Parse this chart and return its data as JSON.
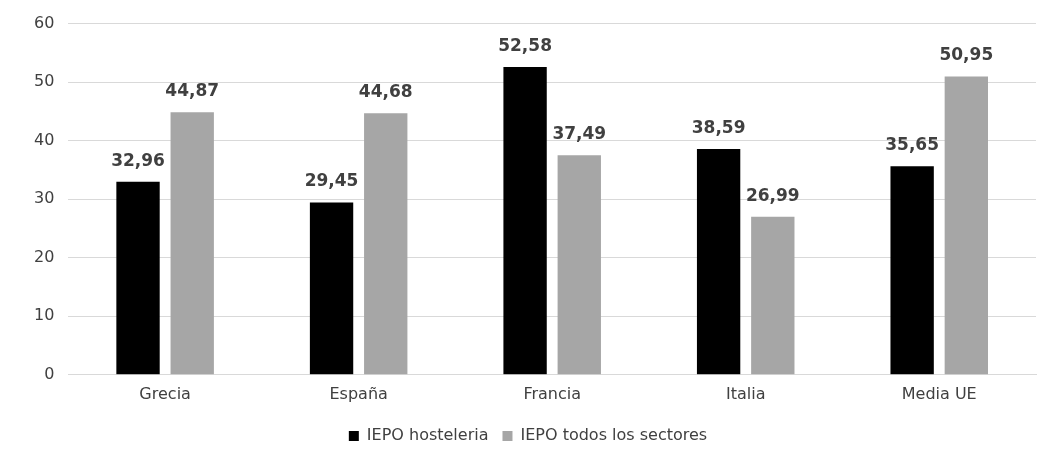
{
  "chart_data": {
    "type": "bar",
    "categories": [
      "Grecia",
      "España",
      "Francia",
      "Italia",
      "Media UE"
    ],
    "series": [
      {
        "name": "IEPO hosteleria",
        "color": "#000000",
        "values": [
          32.96,
          29.45,
          52.58,
          38.59,
          35.65
        ],
        "value_labels": [
          "32,96",
          "29,45",
          "52,58",
          "38,59",
          "35,65"
        ]
      },
      {
        "name": "IEPO todos los sectores",
        "color": "#a6a6a6",
        "values": [
          44.87,
          44.68,
          37.49,
          26.99,
          50.95
        ],
        "value_labels": [
          "44,87",
          "44,68",
          "37,49",
          "26,99",
          "50,95"
        ]
      }
    ],
    "ylim": [
      0,
      60
    ],
    "yticks": [
      0,
      10,
      20,
      30,
      40,
      50,
      60
    ],
    "grid": "y",
    "legend": "bottom"
  }
}
